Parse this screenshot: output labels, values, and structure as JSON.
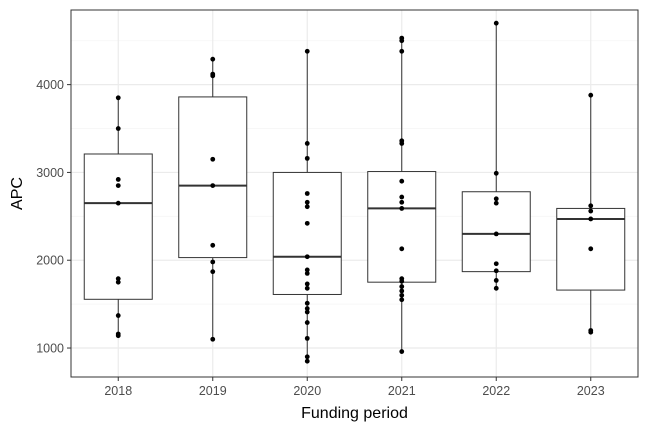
{
  "chart_data": {
    "type": "box",
    "xlabel": "Funding period",
    "ylabel": "APC",
    "ylim": [
      670,
      4850
    ],
    "yticks": [
      1000,
      2000,
      3000,
      4000
    ],
    "grid": true,
    "legend": "none",
    "categories": [
      "2018",
      "2019",
      "2020",
      "2021",
      "2022",
      "2023"
    ],
    "boxes": [
      {
        "category": "2018",
        "q1": 1555,
        "median": 2650,
        "q3": 3210,
        "whisker_low": 1140,
        "whisker_high": 3850,
        "points": [
          3850,
          3500,
          2920,
          2850,
          2650,
          1790,
          1750,
          1370,
          1160,
          1140
        ]
      },
      {
        "category": "2019",
        "q1": 2030,
        "median": 2850,
        "q3": 3860,
        "whisker_low": 1100,
        "whisker_high": 4290,
        "points": [
          4290,
          4120,
          4100,
          3150,
          2850,
          2170,
          1980,
          1870,
          1100
        ]
      },
      {
        "category": "2020",
        "q1": 1610,
        "median": 2040,
        "q3": 3000,
        "whisker_low": 850,
        "whisker_high": 4380,
        "points": [
          4380,
          3330,
          3160,
          2760,
          2660,
          2610,
          2420,
          2040,
          1890,
          1850,
          1730,
          1680,
          1510,
          1450,
          1410,
          1290,
          1110,
          900,
          850
        ]
      },
      {
        "category": "2021",
        "q1": 1750,
        "median": 2590,
        "q3": 3010,
        "whisker_low": 960,
        "whisker_high": 4530,
        "points": [
          4530,
          4500,
          4380,
          3360,
          3330,
          2900,
          2720,
          2660,
          2590,
          2130,
          1790,
          1760,
          1700,
          1650,
          1600,
          1550,
          960
        ]
      },
      {
        "category": "2022",
        "q1": 1870,
        "median": 2300,
        "q3": 2780,
        "whisker_low": 1680,
        "whisker_high": 4700,
        "points": [
          4700,
          2990,
          2700,
          2650,
          2300,
          1960,
          1880,
          1770,
          1680
        ]
      },
      {
        "category": "2023",
        "q1": 1660,
        "median": 2470,
        "q3": 2590,
        "whisker_low": 1180,
        "whisker_high": 3880,
        "points": [
          3880,
          2620,
          2560,
          2470,
          2130,
          1200,
          1180
        ]
      }
    ]
  },
  "colors": {
    "panel_border": "#333333",
    "grid_major": "#ebebeb",
    "grid_minor": "#f5f5f5",
    "box_line": "#333333",
    "point": "#000000",
    "tick": "#333333"
  }
}
